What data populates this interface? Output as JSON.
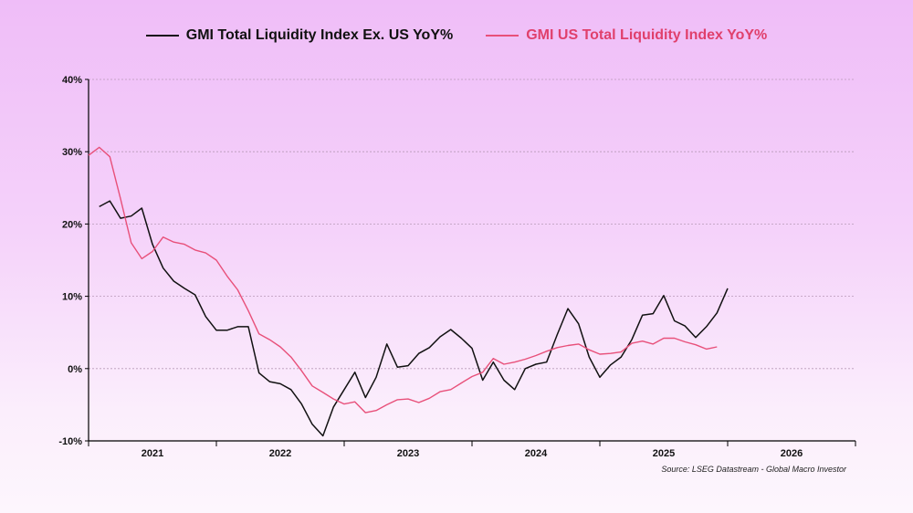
{
  "chart_data": {
    "type": "line",
    "title": "",
    "xlabel": "",
    "ylabel": "",
    "ylim": [
      -10,
      40
    ],
    "yticks": [
      "-10%",
      "0%",
      "10%",
      "20%",
      "30%",
      "40%"
    ],
    "ytick_values": [
      -10,
      0,
      10,
      20,
      30,
      40
    ],
    "xlim": [
      "2021-01",
      "2027-01"
    ],
    "xtick_labels": [
      "2021",
      "2022",
      "2023",
      "2024",
      "2025",
      "2026"
    ],
    "grid": "horizontal dashed",
    "legend_placement": "top",
    "x": [
      "2021-01",
      "2021-02",
      "2021-03",
      "2021-04",
      "2021-05",
      "2021-06",
      "2021-07",
      "2021-08",
      "2021-09",
      "2021-10",
      "2021-11",
      "2021-12",
      "2022-01",
      "2022-02",
      "2022-03",
      "2022-04",
      "2022-05",
      "2022-06",
      "2022-07",
      "2022-08",
      "2022-09",
      "2022-10",
      "2022-11",
      "2022-12",
      "2023-01",
      "2023-02",
      "2023-03",
      "2023-04",
      "2023-05",
      "2023-06",
      "2023-07",
      "2023-08",
      "2023-09",
      "2023-10",
      "2023-11",
      "2023-12",
      "2024-01",
      "2024-02",
      "2024-03",
      "2024-04",
      "2024-05",
      "2024-06",
      "2024-07",
      "2024-08",
      "2024-09",
      "2024-10",
      "2024-11",
      "2024-12",
      "2025-01",
      "2025-02",
      "2025-03",
      "2025-04",
      "2025-05",
      "2025-06",
      "2025-07",
      "2025-08",
      "2025-09",
      "2025-10",
      "2025-11",
      "2025-12",
      "2026-01"
    ],
    "series": [
      {
        "name": "GMI Total Liquidity Index Ex. US YoY%",
        "color": "#111111",
        "values": [
          null,
          22.4,
          23.2,
          20.8,
          21.1,
          22.2,
          17.2,
          13.9,
          12.1,
          11.1,
          10.2,
          7.2,
          5.3,
          5.3,
          5.8,
          5.8,
          -0.6,
          -1.8,
          -2.1,
          -2.9,
          -4.9,
          -7.7,
          -9.3,
          -5.3,
          -2.9,
          -0.5,
          -4.0,
          -1.2,
          3.4,
          0.2,
          0.4,
          2.1,
          2.9,
          4.4,
          5.4,
          4.2,
          2.8,
          -1.6,
          0.9,
          -1.6,
          -2.9,
          0.0,
          0.6,
          0.9,
          4.7,
          8.3,
          6.2,
          1.6,
          -1.2,
          0.5,
          1.6,
          4.0,
          7.4,
          7.6,
          10.1,
          6.6,
          5.9,
          4.3,
          5.8,
          7.7,
          11.1
        ]
      },
      {
        "name": "GMI US Total Liquidity Index YoY%",
        "color": "#e8507a",
        "values": [
          29.5,
          30.6,
          29.3,
          23.5,
          17.4,
          15.2,
          16.2,
          18.2,
          17.5,
          17.2,
          16.4,
          16.0,
          15.0,
          12.8,
          10.9,
          8.0,
          4.8,
          4.0,
          3.0,
          1.6,
          -0.3,
          -2.4,
          -3.3,
          -4.2,
          -4.9,
          -4.6,
          -6.1,
          -5.8,
          -5.0,
          -4.3,
          -4.2,
          -4.7,
          -4.1,
          -3.2,
          -2.9,
          -2.0,
          -1.1,
          -0.5,
          1.4,
          0.6,
          0.9,
          1.3,
          1.8,
          2.4,
          2.9,
          3.2,
          3.4,
          2.6,
          2.0,
          2.1,
          2.3,
          3.5,
          3.8,
          3.4,
          4.2,
          4.2,
          3.7,
          3.3,
          2.7,
          3.0,
          null
        ]
      }
    ],
    "source": "Source: LSEG Datastream - Global Macro Investor"
  }
}
